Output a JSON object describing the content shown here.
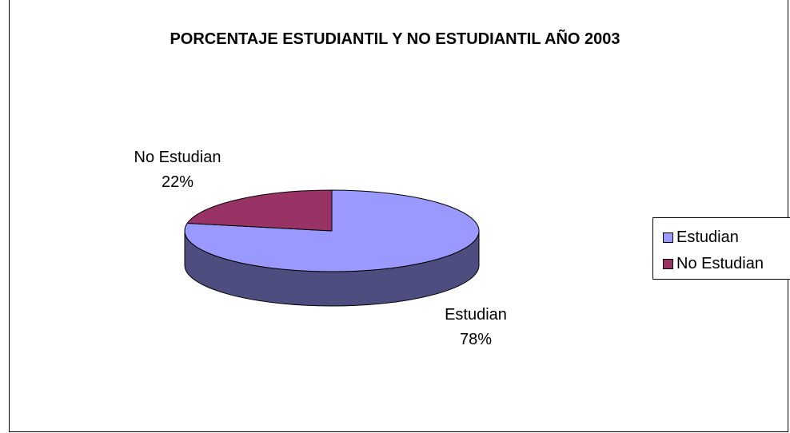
{
  "chart_data": {
    "type": "pie",
    "title": "PORCENTAJE ESTUDIANTIL Y NO ESTUDIANTIL AÑO 2003",
    "categories": [
      "Estudian",
      "No Estudian"
    ],
    "values": [
      78,
      22
    ],
    "labels": [
      "78%",
      "22%"
    ],
    "colors": [
      "#9999ff",
      "#993366"
    ],
    "legend_position": "right",
    "style": "3d"
  }
}
